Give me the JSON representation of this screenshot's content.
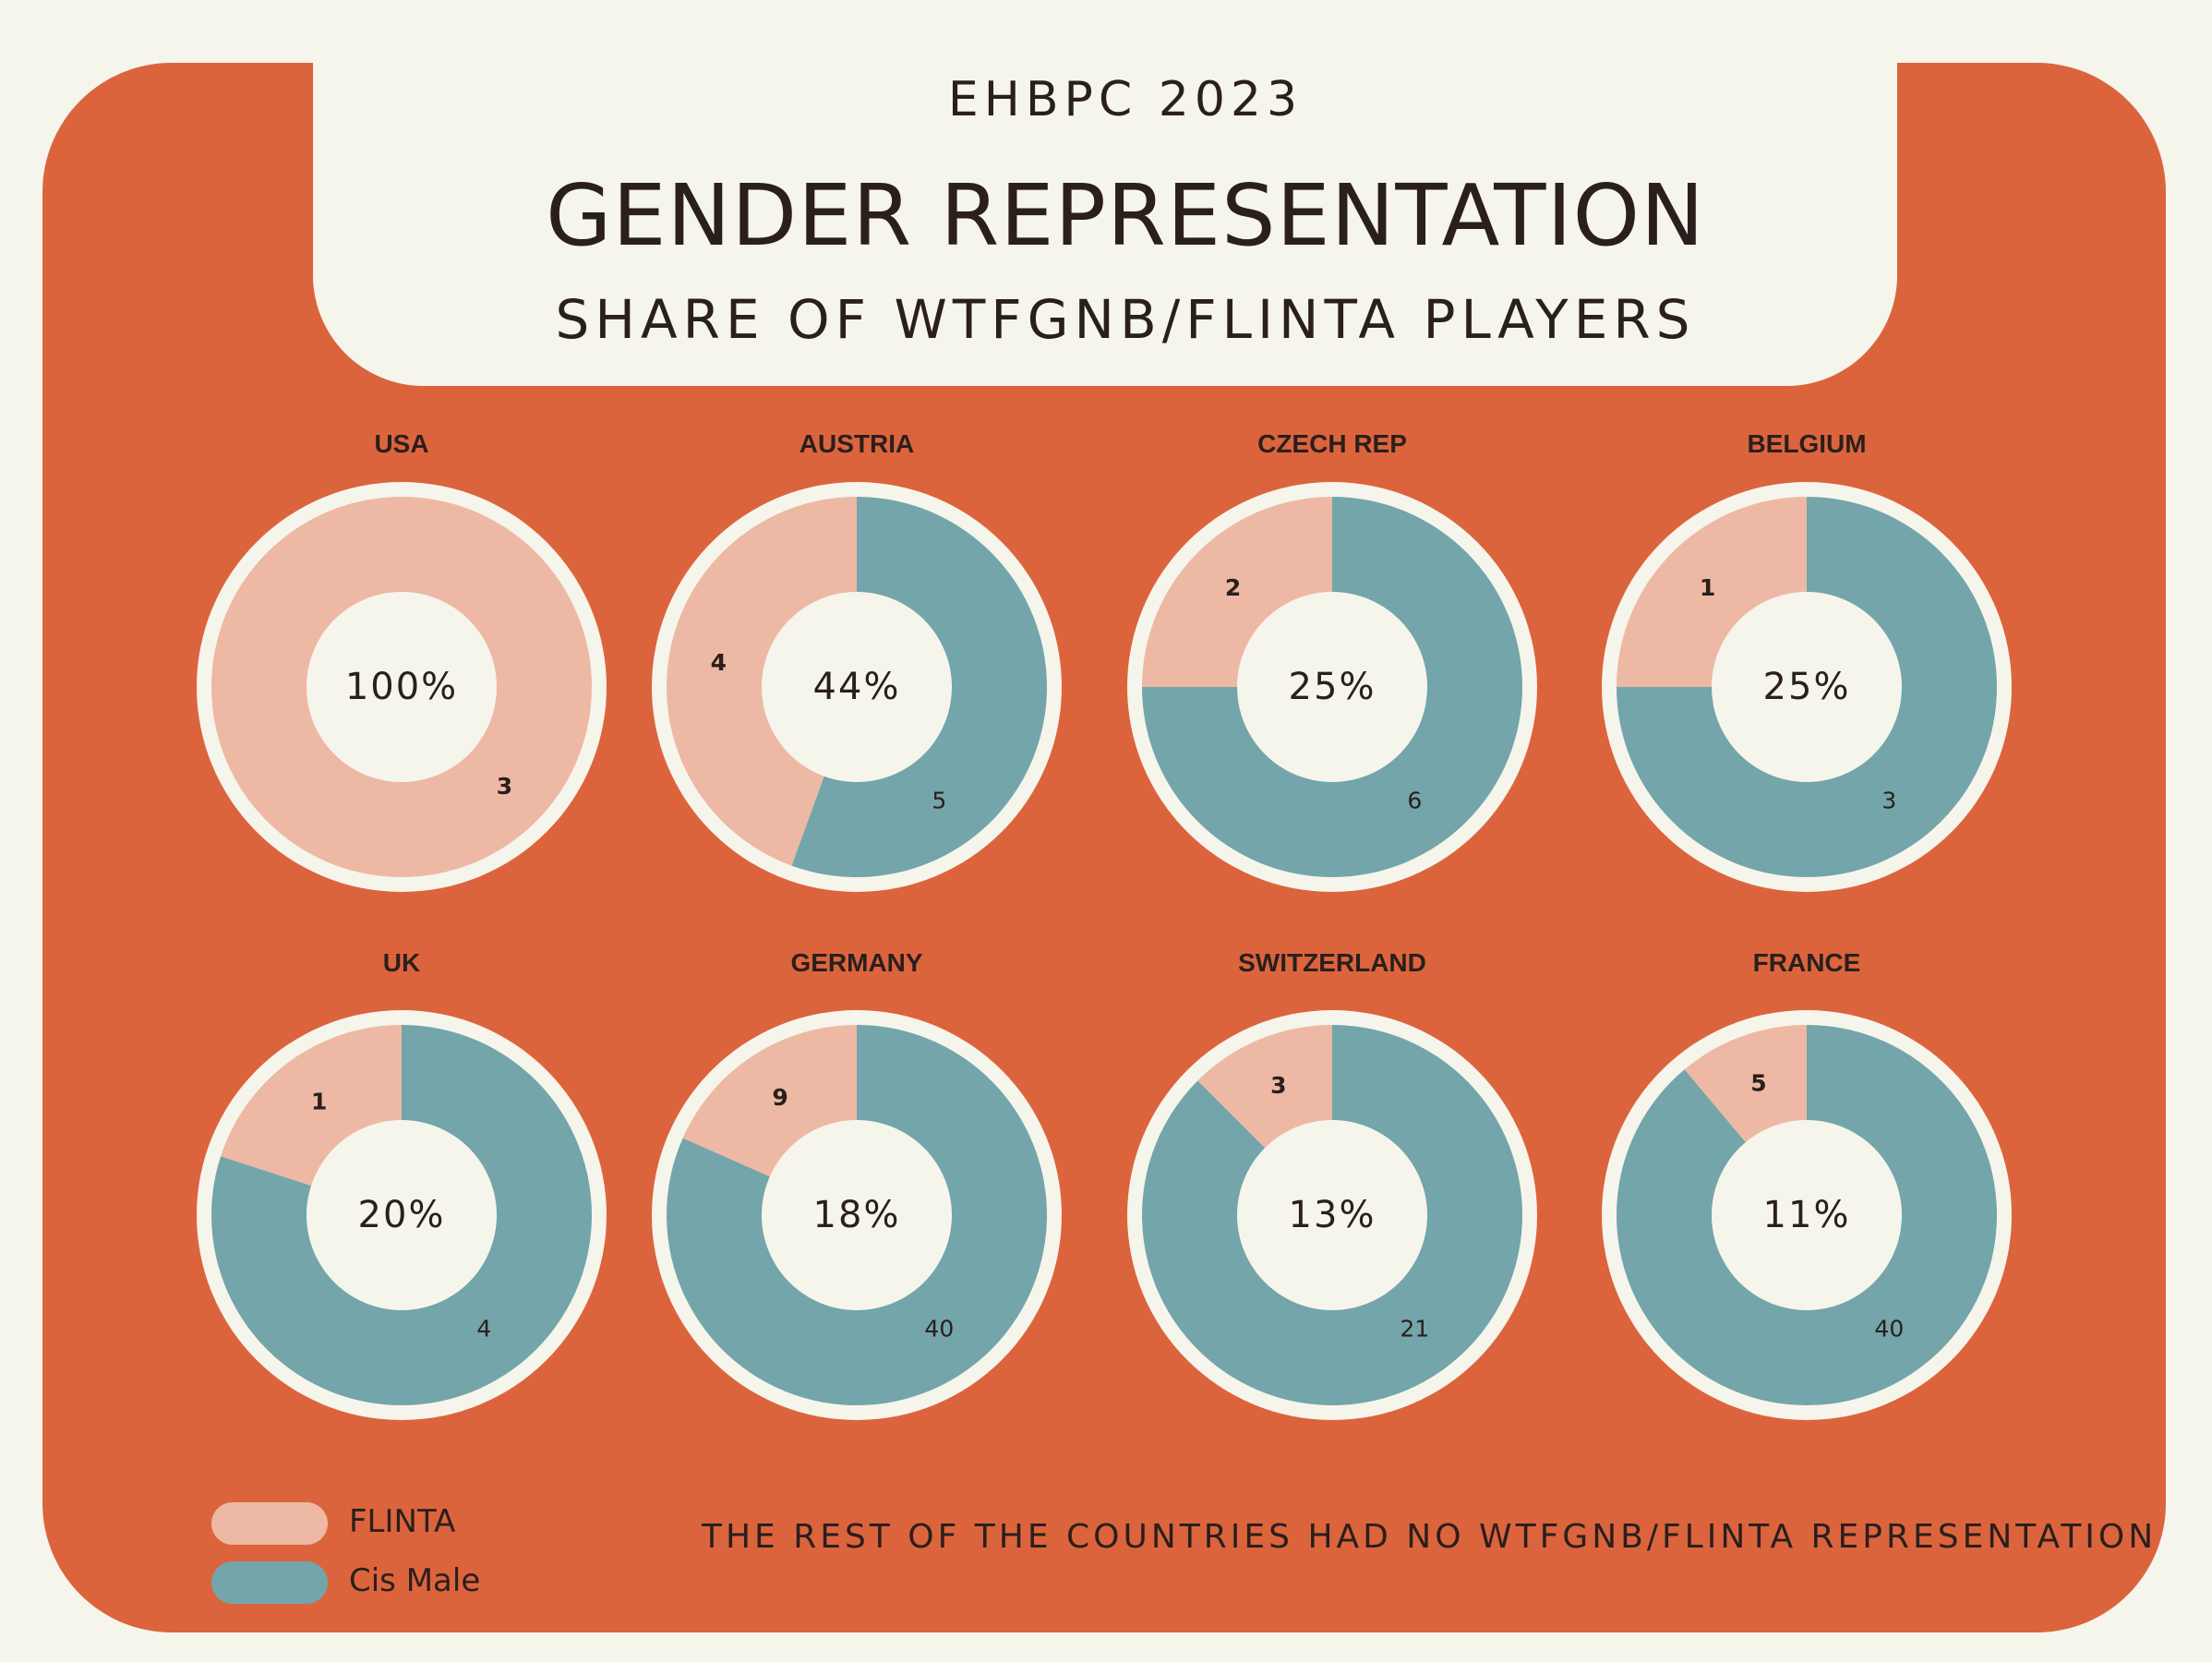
{
  "header": {
    "supertitle": "EHBPC 2023",
    "title": "GENDER REPRESENTATION",
    "subtitle": "SHARE OF WTFGNB/FLINTA PLAYERS"
  },
  "legend": [
    {
      "label": "FLINTA",
      "color": "#edb9a4"
    },
    {
      "label": "Cis Male",
      "color": "#73a5aa"
    }
  ],
  "footnote": "THE REST OF THE COUNTRIES HAD NO WTFGNB/FLINTA REPRESENTATION",
  "colors": {
    "panel": "#dc643d",
    "background": "#f6f5ec",
    "flinta": "#edb9a4",
    "cis_male": "#73a5aa"
  },
  "chart_data": {
    "type": "pie",
    "subtype": "donut-grid",
    "series_names": [
      "FLINTA",
      "Cis Male"
    ],
    "charts": [
      {
        "country": "USA",
        "flinta": 3,
        "cis_male": 0,
        "center_label": "100%"
      },
      {
        "country": "AUSTRIA",
        "flinta": 4,
        "cis_male": 5,
        "center_label": "44%"
      },
      {
        "country": "CZECH REP",
        "flinta": 2,
        "cis_male": 6,
        "center_label": "25%"
      },
      {
        "country": "BELGIUM",
        "flinta": 1,
        "cis_male": 3,
        "center_label": "25%"
      },
      {
        "country": "UK",
        "flinta": 1,
        "cis_male": 4,
        "center_label": "20%"
      },
      {
        "country": "GERMANY",
        "flinta": 9,
        "cis_male": 40,
        "center_label": "18%"
      },
      {
        "country": "SWITZERLAND",
        "flinta": 3,
        "cis_male": 21,
        "center_label": "13%"
      },
      {
        "country": "FRANCE",
        "flinta": 5,
        "cis_male": 40,
        "center_label": "11%"
      }
    ]
  }
}
